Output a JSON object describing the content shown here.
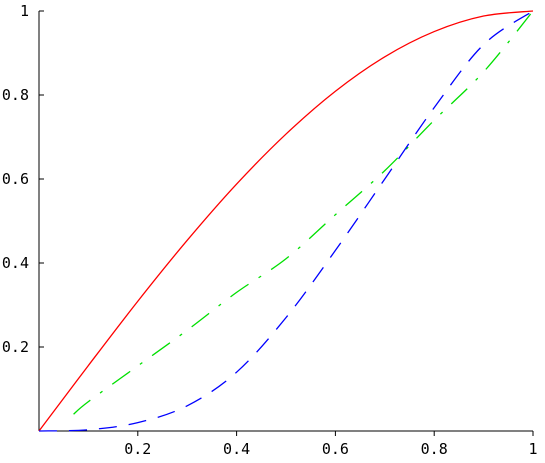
{
  "chart_data": {
    "type": "line",
    "title": "",
    "xlabel": "",
    "ylabel": "",
    "xlim": [
      0,
      1
    ],
    "ylim": [
      0,
      1
    ],
    "x_ticks": [
      {
        "value": 0.2,
        "label": "0.2"
      },
      {
        "value": 0.4,
        "label": "0.4"
      },
      {
        "value": 0.6,
        "label": "0.6"
      },
      {
        "value": 0.8,
        "label": "0.8"
      },
      {
        "value": 1.0,
        "label": "1"
      }
    ],
    "y_ticks": [
      {
        "value": 0.2,
        "label": "0.2"
      },
      {
        "value": 0.4,
        "label": "0.4"
      },
      {
        "value": 0.6,
        "label": "0.6"
      },
      {
        "value": 0.8,
        "label": "0.8"
      },
      {
        "value": 1.0,
        "label": "1"
      }
    ],
    "grid": false,
    "legend": "none",
    "series": [
      {
        "color": "#ff0000",
        "style": "solid",
        "x": [
          0,
          0.1,
          0.2,
          0.3,
          0.4,
          0.5,
          0.6,
          0.7,
          0.8,
          0.9,
          1.0
        ],
        "y": [
          0,
          0.156,
          0.309,
          0.454,
          0.588,
          0.707,
          0.809,
          0.891,
          0.951,
          0.988,
          1.0
        ]
      },
      {
        "color": "#00e000",
        "style": "dashdot",
        "x": [
          0.07,
          0.1,
          0.2,
          0.3,
          0.4,
          0.5,
          0.6,
          0.7,
          0.8,
          0.9,
          1.0
        ],
        "y": [
          0.04,
          0.07,
          0.155,
          0.24,
          0.33,
          0.41,
          0.515,
          0.62,
          0.74,
          0.855,
          1.0
        ]
      },
      {
        "color": "#0000ff",
        "style": "longdash",
        "x": [
          0,
          0.1,
          0.2,
          0.3,
          0.4,
          0.5,
          0.6,
          0.7,
          0.8,
          0.9,
          1.0
        ],
        "y": [
          0,
          0.003,
          0.02,
          0.06,
          0.14,
          0.27,
          0.43,
          0.6,
          0.77,
          0.92,
          1.0
        ]
      }
    ]
  }
}
